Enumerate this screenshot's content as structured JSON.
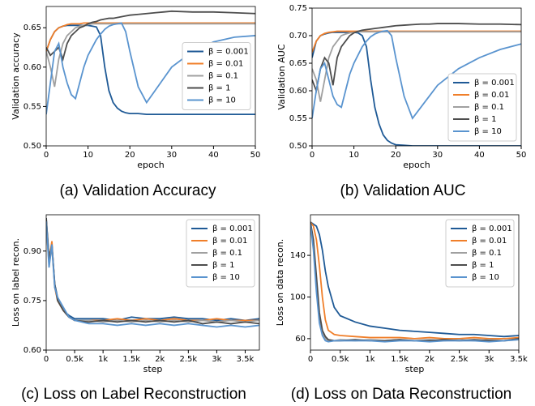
{
  "chart_data": [
    {
      "type": "line",
      "caption": "(a) Validation Accuracy",
      "xlabel": "epoch",
      "ylabel": "Validation accuracy",
      "x": [
        0,
        1,
        2,
        3,
        4,
        5,
        6,
        7,
        8,
        9,
        10,
        11,
        12,
        13,
        14,
        15,
        16,
        17,
        18,
        19,
        20,
        22,
        24,
        26,
        28,
        30,
        35,
        40,
        45,
        50
      ],
      "xlim": [
        0,
        50
      ],
      "xticks": [
        0,
        10,
        20,
        30,
        40,
        50
      ],
      "ylim": [
        0.5,
        0.677
      ],
      "yticks": [
        {
          "value": 0.5,
          "label": "0.50"
        },
        0.55,
        {
          "value": 0.6,
          "label": "0.60"
        },
        0.65
      ],
      "legend": "center right",
      "series": [
        {
          "name": "β = 0.001",
          "color": "#1f5a96",
          "values": [
            0.62,
            0.635,
            0.645,
            0.65,
            0.652,
            0.653,
            0.653,
            0.653,
            0.653,
            0.653,
            0.653,
            0.652,
            0.651,
            0.64,
            0.6,
            0.57,
            0.555,
            0.548,
            0.544,
            0.542,
            0.541,
            0.541,
            0.54,
            0.54,
            0.54,
            0.54,
            0.54,
            0.54,
            0.54,
            0.54
          ]
        },
        {
          "name": "β = 0.01",
          "color": "#f07f2a",
          "values": [
            0.62,
            0.635,
            0.645,
            0.65,
            0.652,
            0.654,
            0.655,
            0.655,
            0.655,
            0.656,
            0.656,
            0.656,
            0.656,
            0.656,
            0.656,
            0.656,
            0.656,
            0.656,
            0.656,
            0.656,
            0.656,
            0.656,
            0.656,
            0.656,
            0.656,
            0.656,
            0.656,
            0.656,
            0.656,
            0.656
          ]
        },
        {
          "name": "β = 0.1",
          "color": "#a0a0a0",
          "values": [
            0.62,
            0.6,
            0.575,
            0.61,
            0.63,
            0.64,
            0.645,
            0.65,
            0.652,
            0.653,
            0.654,
            0.655,
            0.655,
            0.655,
            0.655,
            0.655,
            0.655,
            0.655,
            0.655,
            0.655,
            0.655,
            0.655,
            0.655,
            0.655,
            0.655,
            0.655,
            0.655,
            0.655,
            0.655,
            0.655
          ]
        },
        {
          "name": "β = 1",
          "color": "#4d4d4d",
          "values": [
            0.625,
            0.615,
            0.62,
            0.625,
            0.61,
            0.63,
            0.64,
            0.645,
            0.65,
            0.652,
            0.655,
            0.657,
            0.658,
            0.66,
            0.661,
            0.662,
            0.662,
            0.663,
            0.664,
            0.665,
            0.666,
            0.667,
            0.668,
            0.669,
            0.67,
            0.671,
            0.67,
            0.67,
            0.669,
            0.668
          ]
        },
        {
          "name": "β = 10",
          "color": "#5a94cf",
          "values": [
            0.54,
            0.58,
            0.62,
            0.63,
            0.6,
            0.58,
            0.565,
            0.56,
            0.58,
            0.6,
            0.615,
            0.625,
            0.635,
            0.642,
            0.648,
            0.652,
            0.654,
            0.655,
            0.656,
            0.645,
            0.62,
            0.575,
            0.555,
            0.57,
            0.585,
            0.6,
            0.62,
            0.632,
            0.638,
            0.64
          ]
        }
      ]
    },
    {
      "type": "line",
      "caption": "(b) Validation AUC",
      "xlabel": "epoch",
      "ylabel": "Validation AUC",
      "x": [
        0,
        1,
        2,
        3,
        4,
        5,
        6,
        7,
        8,
        9,
        10,
        11,
        12,
        13,
        14,
        15,
        16,
        17,
        18,
        19,
        20,
        22,
        24,
        26,
        28,
        30,
        35,
        40,
        45,
        50
      ],
      "xlim": [
        0,
        50
      ],
      "xticks": [
        0,
        10,
        20,
        30,
        40,
        50
      ],
      "ylim": [
        0.5,
        0.75
      ],
      "yticks": [
        {
          "value": 0.5,
          "label": "0.50"
        },
        0.55,
        {
          "value": 0.6,
          "label": "0.60"
        },
        0.65,
        {
          "value": 0.7,
          "label": "0.70"
        },
        0.75
      ],
      "legend": "lower right",
      "series": [
        {
          "name": "β = 0.001",
          "color": "#1f5a96",
          "values": [
            0.66,
            0.69,
            0.7,
            0.703,
            0.705,
            0.706,
            0.706,
            0.706,
            0.706,
            0.706,
            0.706,
            0.705,
            0.7,
            0.68,
            0.62,
            0.57,
            0.54,
            0.52,
            0.51,
            0.505,
            0.502,
            0.501,
            0.5,
            0.5,
            0.5,
            0.5,
            0.5,
            0.5,
            0.5,
            0.5
          ]
        },
        {
          "name": "β = 0.01",
          "color": "#f07f2a",
          "values": [
            0.67,
            0.69,
            0.7,
            0.704,
            0.706,
            0.707,
            0.708,
            0.708,
            0.708,
            0.708,
            0.708,
            0.708,
            0.708,
            0.708,
            0.708,
            0.708,
            0.708,
            0.708,
            0.708,
            0.708,
            0.708,
            0.708,
            0.708,
            0.708,
            0.708,
            0.708,
            0.708,
            0.708,
            0.708,
            0.708
          ]
        },
        {
          "name": "β = 0.1",
          "color": "#a0a0a0",
          "values": [
            0.64,
            0.62,
            0.58,
            0.62,
            0.66,
            0.68,
            0.69,
            0.7,
            0.703,
            0.705,
            0.706,
            0.707,
            0.707,
            0.707,
            0.707,
            0.707,
            0.707,
            0.707,
            0.707,
            0.707,
            0.707,
            0.707,
            0.707,
            0.707,
            0.707,
            0.707,
            0.707,
            0.707,
            0.707,
            0.707
          ]
        },
        {
          "name": "β = 1",
          "color": "#4d4d4d",
          "values": [
            0.62,
            0.6,
            0.64,
            0.66,
            0.65,
            0.61,
            0.66,
            0.68,
            0.69,
            0.7,
            0.705,
            0.708,
            0.71,
            0.711,
            0.712,
            0.713,
            0.714,
            0.715,
            0.716,
            0.717,
            0.718,
            0.719,
            0.72,
            0.721,
            0.721,
            0.722,
            0.722,
            0.721,
            0.721,
            0.72
          ]
        },
        {
          "name": "β = 10",
          "color": "#5a94cf",
          "values": [
            0.55,
            0.6,
            0.64,
            0.65,
            0.62,
            0.59,
            0.575,
            0.57,
            0.6,
            0.63,
            0.65,
            0.665,
            0.68,
            0.69,
            0.698,
            0.703,
            0.706,
            0.708,
            0.709,
            0.7,
            0.66,
            0.59,
            0.55,
            0.57,
            0.59,
            0.61,
            0.64,
            0.66,
            0.675,
            0.685
          ]
        }
      ]
    },
    {
      "type": "line",
      "caption": "(c) Loss on Label Reconstruction",
      "xlabel": "step",
      "ylabel": "Loss on label recon.",
      "x": [
        0,
        50,
        100,
        150,
        200,
        300,
        400,
        500,
        750,
        1000,
        1250,
        1500,
        1750,
        2000,
        2250,
        2500,
        2750,
        3000,
        3250,
        3500,
        3750
      ],
      "xlim": [
        0,
        3750
      ],
      "xticks": [
        0,
        {
          "value": 500,
          "label": "0.5k"
        },
        {
          "value": 1000,
          "label": "1k"
        },
        {
          "value": 1500,
          "label": "1.5k"
        },
        {
          "value": 2000,
          "label": "2k"
        },
        {
          "value": 2500,
          "label": "2.5k"
        },
        {
          "value": 3000,
          "label": "3k"
        },
        {
          "value": 3500,
          "label": "3.5k"
        }
      ],
      "ylim": [
        0.6,
        1.01
      ],
      "yticks": [
        {
          "value": 0.6,
          "label": "0.60"
        },
        0.75,
        {
          "value": 0.9,
          "label": "0.90"
        }
      ],
      "legend": "upper right",
      "series": [
        {
          "name": "β = 0.001",
          "color": "#1f5a96",
          "values": [
            1.0,
            0.88,
            0.92,
            0.8,
            0.76,
            0.72,
            0.705,
            0.695,
            0.695,
            0.695,
            0.69,
            0.7,
            0.695,
            0.695,
            0.7,
            0.695,
            0.695,
            0.69,
            0.695,
            0.69,
            0.695
          ]
        },
        {
          "name": "β = 0.01",
          "color": "#f07f2a",
          "values": [
            0.99,
            0.87,
            0.93,
            0.79,
            0.75,
            0.72,
            0.7,
            0.69,
            0.69,
            0.69,
            0.695,
            0.69,
            0.695,
            0.69,
            0.695,
            0.69,
            0.69,
            0.695,
            0.69,
            0.69,
            0.69
          ]
        },
        {
          "name": "β = 0.1",
          "color": "#a0a0a0",
          "values": [
            0.98,
            0.86,
            0.91,
            0.79,
            0.76,
            0.72,
            0.7,
            0.69,
            0.69,
            0.685,
            0.69,
            0.685,
            0.69,
            0.685,
            0.69,
            0.685,
            0.69,
            0.685,
            0.69,
            0.685,
            0.69
          ]
        },
        {
          "name": "β = 1",
          "color": "#4d4d4d",
          "values": [
            1.0,
            0.87,
            0.92,
            0.8,
            0.75,
            0.72,
            0.7,
            0.69,
            0.685,
            0.69,
            0.685,
            0.69,
            0.685,
            0.69,
            0.685,
            0.69,
            0.68,
            0.685,
            0.68,
            0.685,
            0.68
          ]
        },
        {
          "name": "β = 10",
          "color": "#5a94cf",
          "values": [
            0.99,
            0.85,
            0.92,
            0.79,
            0.76,
            0.73,
            0.7,
            0.69,
            0.68,
            0.68,
            0.675,
            0.68,
            0.675,
            0.68,
            0.675,
            0.68,
            0.675,
            0.67,
            0.675,
            0.67,
            0.675
          ]
        }
      ]
    },
    {
      "type": "line",
      "caption": "(d) Loss on Data Reconstruction",
      "xlabel": "step",
      "ylabel": "Loss on data recon.",
      "x": [
        0,
        50,
        100,
        150,
        200,
        250,
        300,
        400,
        500,
        750,
        1000,
        1250,
        1500,
        1750,
        2000,
        2250,
        2500,
        2750,
        3000,
        3250,
        3500
      ],
      "xlim": [
        0,
        3500
      ],
      "xticks": [
        0,
        {
          "value": 500,
          "label": "0.5k"
        },
        {
          "value": 1000,
          "label": "1k"
        },
        {
          "value": 1500,
          "label": "1.5k"
        },
        {
          "value": 2000,
          "label": "2k"
        },
        {
          "value": 2500,
          "label": "2.5k"
        },
        {
          "value": 3000,
          "label": "3k"
        },
        {
          "value": 3500,
          "label": "3.5k"
        }
      ],
      "ylim": [
        49,
        179
      ],
      "yticks": [
        60,
        100,
        140
      ],
      "legend": "upper right",
      "series": [
        {
          "name": "β = 0.001",
          "color": "#1f5a96",
          "values": [
            172,
            170,
            168,
            160,
            145,
            125,
            110,
            90,
            82,
            76,
            72,
            70,
            68,
            67,
            66,
            65,
            64,
            64,
            63,
            62,
            63
          ]
        },
        {
          "name": "β = 0.01",
          "color": "#f07f2a",
          "values": [
            172,
            168,
            155,
            130,
            100,
            78,
            68,
            64,
            63,
            62,
            61,
            61,
            61,
            60,
            61,
            60,
            60,
            61,
            60,
            60,
            61
          ]
        },
        {
          "name": "β = 0.1",
          "color": "#a0a0a0",
          "values": [
            170,
            150,
            110,
            80,
            65,
            60,
            58,
            58,
            59,
            58,
            59,
            58,
            59,
            58,
            59,
            58,
            59,
            58,
            59,
            58,
            59
          ]
        },
        {
          "name": "β = 1",
          "color": "#4d4d4d",
          "values": [
            172,
            155,
            120,
            85,
            68,
            62,
            59,
            58,
            58,
            59,
            58,
            58,
            59,
            58,
            58,
            59,
            58,
            59,
            58,
            58,
            60
          ]
        },
        {
          "name": "β = 10",
          "color": "#5a94cf",
          "values": [
            170,
            145,
            105,
            75,
            63,
            58,
            57,
            58,
            58,
            58,
            58,
            57,
            58,
            58,
            57,
            58,
            58,
            58,
            57,
            58,
            59
          ]
        }
      ]
    }
  ]
}
